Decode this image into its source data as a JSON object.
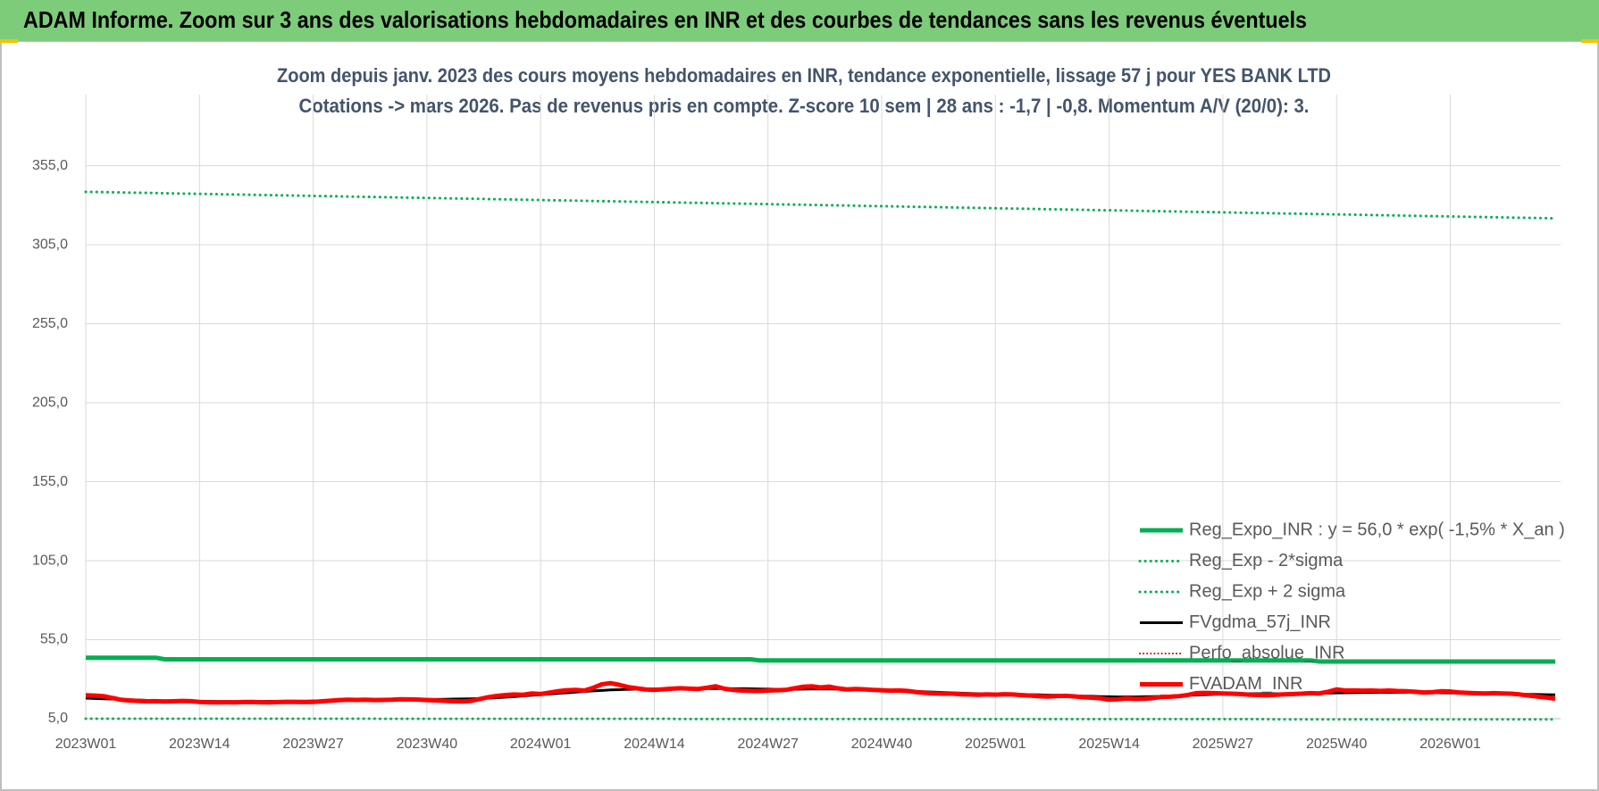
{
  "header": "ADAM Informe. Zoom sur 3 ans des valorisations hebdomadaires en INR et des courbes de tendances sans les revenus éventuels",
  "chart_data": {
    "type": "line",
    "title": "Zoom depuis janv. 2023 des cours moyens hebdomadaires en INR, tendance exponentielle, lissage 57 j pour YES BANK LTD",
    "subtitle": "Cotations -> mars 2026. Pas de revenus pris en compte. Z-score 10 sem | 28 ans : -1,7 | -0,8. Momentum A/V (20/0): 3.",
    "categories": [
      "2023W01",
      null,
      null,
      null,
      null,
      null,
      null,
      null,
      null,
      null,
      null,
      null,
      null,
      "2023W14",
      null,
      null,
      null,
      null,
      null,
      null,
      null,
      null,
      null,
      null,
      null,
      null,
      "2023W27",
      null,
      null,
      null,
      null,
      null,
      null,
      null,
      null,
      null,
      null,
      null,
      null,
      "2023W40",
      null,
      null,
      null,
      null,
      null,
      null,
      null,
      null,
      null,
      null,
      null,
      null,
      "2024W01",
      null,
      null,
      null,
      null,
      null,
      null,
      null,
      null,
      null,
      null,
      null,
      null,
      "2024W14",
      null,
      null,
      null,
      null,
      null,
      null,
      null,
      null,
      null,
      null,
      null,
      null,
      "2024W27",
      null,
      null,
      null,
      null,
      null,
      null,
      null,
      null,
      null,
      null,
      null,
      null,
      "2024W40",
      null,
      null,
      null,
      null,
      null,
      null,
      null,
      null,
      null,
      null,
      null,
      null,
      "2025W01",
      null,
      null,
      null,
      null,
      null,
      null,
      null,
      null,
      null,
      null,
      null,
      null,
      "2025W14",
      null,
      null,
      null,
      null,
      null,
      null,
      null,
      null,
      null,
      null,
      null,
      null,
      "2025W27",
      null,
      null,
      null,
      null,
      null,
      null,
      null,
      null,
      null,
      null,
      null,
      null,
      "2025W40",
      null,
      null,
      null,
      null,
      null,
      null,
      null,
      null,
      null,
      null,
      null,
      null,
      "2026W01",
      null,
      null,
      null,
      null,
      null,
      null,
      null,
      null,
      null,
      null,
      null,
      null
    ],
    "ylim": [
      5,
      400
    ],
    "yticks": [
      {
        "value": 5,
        "label": "5,0"
      },
      {
        "value": 55,
        "label": "55,0"
      },
      {
        "value": 105,
        "label": "105,0"
      },
      {
        "value": 155,
        "label": "155,0"
      },
      {
        "value": 205,
        "label": "205,0"
      },
      {
        "value": 255,
        "label": "255,0"
      },
      {
        "value": 305,
        "label": "305,0"
      },
      {
        "value": 355,
        "label": "355,0"
      }
    ],
    "grid": true,
    "legend": "lower-right",
    "series": [
      {
        "name": "Reg_Expo_INR : y = 56,0 * exp( -1,5% *  X_an )",
        "color": "#00b050",
        "style": "solid",
        "width": 5,
        "values": [
          43.6,
          43.6,
          43.6,
          43.6,
          43.6,
          43.6,
          43.6,
          43.6,
          43.6,
          42.6,
          42.6,
          42.6,
          42.6,
          42.6,
          42.6,
          42.6,
          42.6,
          42.6,
          42.6,
          42.6,
          42.6,
          42.6,
          42.6,
          42.6,
          42.6,
          42.6,
          42.6,
          42.6,
          42.6,
          42.6,
          42.6,
          42.6,
          42.6,
          42.6,
          42.6,
          42.6,
          42.6,
          42.6,
          42.6,
          42.6,
          42.6,
          42.6,
          42.6,
          42.6,
          42.6,
          42.6,
          42.6,
          42.6,
          42.6,
          42.6,
          42.6,
          42.6,
          42.6,
          42.6,
          42.6,
          42.6,
          42.6,
          42.6,
          42.6,
          42.6,
          42.6,
          42.6,
          42.6,
          42.6,
          42.6,
          42.6,
          42.6,
          42.6,
          42.6,
          42.6,
          42.6,
          42.6,
          42.6,
          42.6,
          42.6,
          42.6,
          42.6,
          41.9,
          41.9,
          41.9,
          41.9,
          41.9,
          41.9,
          41.9,
          41.9,
          41.9,
          41.9,
          41.9,
          41.9,
          41.9,
          41.9,
          41.9,
          41.9,
          41.9,
          41.9,
          41.9,
          41.9,
          41.9,
          41.9,
          41.9,
          41.9,
          41.9,
          41.9,
          41.9,
          41.9,
          41.9,
          41.9,
          41.9,
          41.9,
          41.9,
          41.9,
          41.9,
          41.9,
          41.9,
          41.9,
          41.9,
          41.9,
          41.9,
          41.9,
          41.9,
          41.9,
          41.9,
          41.9,
          41.9,
          41.9,
          41.9,
          41.9,
          41.9,
          41.9,
          41.9,
          41.9,
          41.9,
          41.9,
          41.9,
          41.9,
          41.9,
          41.9,
          41.9,
          41.9,
          41.9,
          41.9,
          41.2,
          41.2,
          41.2,
          41.2,
          41.2,
          41.2,
          41.2,
          41.2,
          41.2,
          41.2,
          41.2,
          41.2,
          41.2,
          41.2,
          41.2,
          41.2,
          41.2,
          41.2,
          41.2,
          41.2,
          41.2,
          41.2,
          41.2,
          41.2,
          41.2,
          41.2,
          41.2,
          41.2
        ]
      },
      {
        "name": "Reg_Exp - 2*sigma",
        "color": "#00b050",
        "style": "dotted",
        "width": 3,
        "values": [
          5.0,
          5.0,
          5.0,
          5.0,
          5.0,
          5.0,
          5.0,
          5.0,
          5.0,
          5.0,
          5.0,
          5.0,
          5.0,
          5.0,
          5.0,
          5.0,
          5.0,
          5.0,
          5.0,
          5.0,
          5.0,
          5.0,
          5.0,
          5.0,
          5.0,
          5.0,
          5.0,
          5.0,
          5.0,
          5.0,
          5.0,
          5.0,
          5.0,
          5.0,
          4.9,
          4.9,
          4.9,
          4.9,
          4.9,
          4.9,
          4.9,
          4.9,
          4.9,
          4.9,
          4.9,
          4.9,
          4.9,
          4.9,
          4.9,
          4.9,
          4.9,
          4.9,
          4.9,
          4.9,
          4.9,
          4.9,
          4.9,
          4.9,
          4.9,
          4.9,
          4.9,
          4.9,
          4.9,
          4.9,
          4.9,
          4.9,
          4.9,
          4.9,
          4.8,
          4.8,
          4.8,
          4.8,
          4.8,
          4.8,
          4.8,
          4.8,
          4.8,
          4.8,
          4.8,
          4.8,
          4.8,
          4.8,
          4.8,
          4.8,
          4.8,
          4.8,
          4.8,
          4.8,
          4.8,
          4.8,
          4.8,
          4.8,
          4.8,
          4.8,
          4.8,
          4.8,
          4.8,
          4.8,
          4.8,
          4.8,
          4.8,
          4.8,
          4.7,
          4.7,
          4.7,
          4.7,
          4.7,
          4.7,
          4.7,
          4.7,
          4.7,
          4.7,
          4.7,
          4.7,
          4.7,
          4.7,
          4.7,
          4.7,
          4.7,
          4.7,
          4.7,
          4.7,
          4.7,
          4.7,
          4.7,
          4.7,
          4.7,
          4.7,
          4.7,
          4.7,
          4.7,
          4.7,
          4.7,
          4.7,
          4.7,
          4.7,
          4.6,
          4.6,
          4.6,
          4.6,
          4.6,
          4.6,
          4.6,
          4.6,
          4.6,
          4.6,
          4.6,
          4.6,
          4.6,
          4.6,
          4.6,
          4.6,
          4.6,
          4.6,
          4.6,
          4.6,
          4.6,
          4.6,
          4.6,
          4.6,
          4.6,
          4.6,
          4.6,
          4.6,
          4.6,
          4.6,
          4.6,
          4.6,
          4.6
        ]
      },
      {
        "name": "Reg_Exp + 2 sigma",
        "color": "#00b050",
        "style": "dotted",
        "width": 3,
        "values": [
          338.5,
          338.4,
          338.3,
          338.2,
          338.1,
          338.0,
          337.9,
          337.8,
          337.7,
          337.6,
          337.5,
          337.4,
          337.3,
          337.2,
          337.1,
          337.0,
          336.9,
          336.8,
          336.7,
          336.6,
          336.5,
          336.4,
          336.3,
          336.2,
          336.1,
          336.0,
          335.9,
          335.8,
          335.7,
          335.6,
          335.5,
          335.4,
          335.3,
          335.2,
          335.1,
          335.0,
          334.9,
          334.8,
          334.7,
          334.6,
          334.5,
          334.4,
          334.3,
          334.2,
          334.1,
          334.0,
          333.9,
          333.8,
          333.7,
          333.6,
          333.5,
          333.4,
          333.3,
          333.2,
          333.1,
          333.0,
          332.9,
          332.8,
          332.7,
          332.6,
          332.5,
          332.4,
          332.3,
          332.2,
          332.1,
          332.0,
          331.9,
          331.8,
          331.7,
          331.6,
          331.5,
          331.4,
          331.3,
          331.2,
          331.1,
          331.0,
          330.9,
          330.8,
          330.7,
          330.6,
          330.5,
          330.4,
          330.3,
          330.2,
          330.1,
          330.0,
          329.9,
          329.8,
          329.7,
          329.6,
          329.5,
          329.4,
          329.3,
          329.2,
          329.1,
          329.0,
          328.9,
          328.8,
          328.7,
          328.6,
          328.5,
          328.4,
          328.3,
          328.2,
          328.1,
          328.0,
          327.9,
          327.8,
          327.7,
          327.6,
          327.5,
          327.4,
          327.3,
          327.2,
          327.1,
          327.0,
          326.9,
          326.8,
          326.7,
          326.6,
          326.5,
          326.4,
          326.3,
          326.2,
          326.1,
          326.0,
          325.9,
          325.8,
          325.7,
          325.6,
          325.5,
          325.4,
          325.3,
          325.2,
          325.1,
          325.0,
          324.9,
          324.8,
          324.7,
          324.6,
          324.5,
          324.4,
          324.3,
          324.2,
          324.1,
          324.0,
          323.9,
          323.8,
          323.7,
          323.6,
          323.5,
          323.4,
          323.3,
          323.2,
          323.1,
          323.0,
          322.9,
          322.8,
          322.7,
          322.6,
          322.5,
          322.4,
          322.3,
          322.2,
          322.1,
          322.0,
          321.9,
          321.8,
          321.7
        ]
      },
      {
        "name": "FVgdma_57j_INR",
        "color": "#000000",
        "style": "solid",
        "width": 3,
        "values": [
          18.0,
          17.8,
          17.6,
          17.4,
          17.2,
          17.0,
          16.8,
          16.6,
          16.5,
          16.4,
          16.3,
          16.2,
          16.1,
          16.0,
          16.0,
          15.9,
          15.9,
          15.9,
          15.9,
          15.9,
          15.9,
          16.0,
          16.0,
          16.0,
          16.1,
          16.1,
          16.2,
          16.3,
          16.4,
          16.5,
          16.6,
          16.7,
          16.8,
          16.9,
          17.0,
          17.0,
          17.1,
          17.1,
          17.1,
          17.2,
          17.2,
          17.3,
          17.4,
          17.5,
          17.6,
          17.8,
          18.0,
          18.3,
          18.6,
          19.0,
          19.4,
          19.8,
          20.2,
          20.6,
          21.0,
          21.4,
          21.8,
          22.2,
          22.6,
          22.9,
          23.2,
          23.4,
          23.6,
          23.7,
          23.8,
          23.8,
          23.9,
          23.9,
          24.0,
          24.0,
          24.0,
          24.1,
          24.1,
          24.1,
          24.0,
          24.0,
          23.9,
          23.8,
          23.7,
          23.6,
          23.6,
          23.6,
          23.7,
          23.8,
          23.8,
          23.8,
          23.7,
          23.6,
          23.5,
          23.4,
          23.2,
          23.0,
          22.8,
          22.6,
          22.4,
          22.2,
          22.0,
          21.8,
          21.6,
          21.4,
          21.2,
          21.0,
          20.8,
          20.7,
          20.6,
          20.5,
          20.4,
          20.3,
          20.2,
          20.1,
          19.9,
          19.8,
          19.6,
          19.5,
          19.3,
          19.2,
          19.0,
          18.9,
          18.8,
          18.8,
          18.8,
          18.9,
          19.0,
          19.2,
          19.4,
          19.6,
          19.8,
          20.0,
          20.2,
          20.4,
          20.6,
          20.7,
          20.8,
          20.8,
          20.8,
          20.8,
          20.8,
          20.8,
          20.8,
          20.9,
          21.0,
          21.1,
          21.2,
          21.3,
          21.4,
          21.5,
          21.6,
          21.6,
          21.7,
          21.7,
          21.7,
          21.7,
          21.6,
          21.6,
          21.5,
          21.4,
          21.3,
          21.2,
          21.1,
          21.0,
          20.9,
          20.8,
          20.7,
          20.6,
          20.5,
          20.4,
          20.3,
          20.2,
          20.1
        ]
      },
      {
        "name": "Perfo_absolue_INR",
        "color": "#c00000",
        "style": "dotted",
        "width": 2
      },
      {
        "name": "FVADAM_INR",
        "color": "#ff0000",
        "style": "solid",
        "width": 5,
        "values": [
          19.8,
          19.6,
          19.3,
          18.2,
          17.0,
          16.5,
          16.2,
          16.0,
          16.1,
          15.9,
          16.0,
          16.2,
          16.1,
          15.6,
          15.4,
          15.3,
          15.4,
          15.3,
          15.5,
          15.6,
          15.4,
          15.3,
          15.5,
          15.7,
          15.6,
          15.5,
          15.6,
          16.0,
          16.4,
          16.8,
          17.0,
          16.9,
          17.0,
          16.8,
          16.9,
          17.0,
          17.3,
          17.2,
          17.1,
          16.8,
          16.6,
          16.3,
          16.0,
          15.9,
          16.2,
          17.4,
          18.6,
          19.4,
          20.0,
          20.3,
          20.1,
          21.0,
          20.6,
          21.5,
          22.4,
          23.0,
          23.2,
          22.8,
          24.5,
          26.8,
          27.5,
          26.4,
          25.0,
          24.2,
          23.5,
          23.2,
          23.6,
          24.0,
          24.3,
          24.0,
          23.8,
          24.6,
          25.5,
          24.0,
          23.2,
          22.8,
          22.6,
          22.5,
          22.8,
          23.0,
          23.2,
          24.2,
          25.2,
          25.5,
          24.8,
          25.3,
          24.2,
          23.5,
          23.8,
          23.6,
          23.2,
          23.0,
          22.7,
          22.9,
          22.5,
          21.8,
          21.3,
          21.0,
          20.8,
          20.9,
          20.5,
          20.3,
          20.1,
          20.4,
          20.2,
          20.5,
          20.3,
          19.9,
          19.6,
          19.2,
          19.0,
          19.3,
          19.5,
          19.1,
          18.6,
          18.3,
          17.9,
          17.0,
          17.3,
          17.8,
          17.5,
          17.6,
          18.0,
          18.8,
          18.9,
          19.3,
          20.0,
          21.2,
          21.3,
          21.2,
          21.0,
          20.8,
          20.6,
          20.2,
          20.0,
          19.8,
          20.1,
          20.4,
          20.6,
          20.8,
          21.2,
          21.0,
          22.0,
          23.5,
          22.8,
          22.9,
          22.7,
          22.8,
          22.6,
          22.8,
          22.5,
          22.4,
          22.0,
          21.6,
          21.8,
          22.4,
          22.2,
          21.6,
          21.3,
          21.1,
          21.0,
          21.2,
          21.0,
          20.8,
          20.3,
          19.6,
          19.0,
          18.4,
          17.6
        ]
      }
    ]
  }
}
